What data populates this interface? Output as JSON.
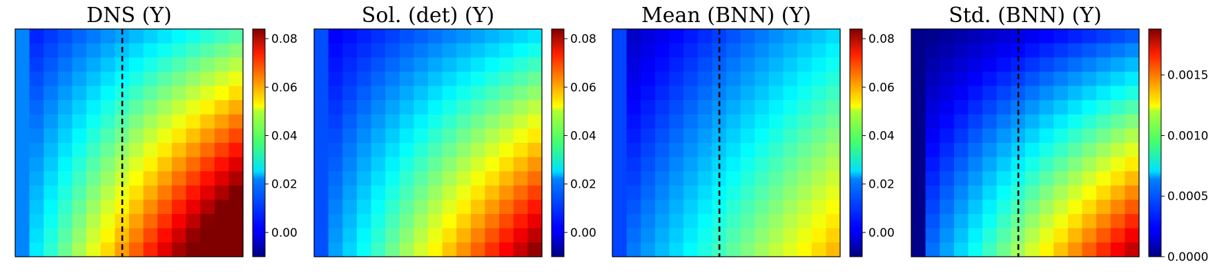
{
  "chart_data": [
    {
      "type": "heatmap",
      "title": "DNS (Y)",
      "grid_size": 16,
      "field": {
        "base": 0.018,
        "dx": 0.03,
        "dy": 0.015,
        "xy": 0.055,
        "border": 0.014
      },
      "colorbar": {
        "vmin": -0.01,
        "vmax": 0.084,
        "ticks": [
          0.0,
          0.02,
          0.04,
          0.06,
          0.08
        ],
        "tick_labels": [
          "0.00",
          "0.02",
          "0.04",
          "0.06",
          "0.08"
        ]
      },
      "dashed_line_x": 0.47
    },
    {
      "type": "heatmap",
      "title": "Sol. (det) (Y)",
      "grid_size": 16,
      "field": {
        "base": 0.012,
        "dx": 0.023,
        "dy": 0.012,
        "xy": 0.047,
        "border": 0.009
      },
      "colorbar": {
        "vmin": -0.01,
        "vmax": 0.084,
        "ticks": [
          0.0,
          0.02,
          0.04,
          0.06,
          0.08
        ],
        "tick_labels": [
          "0.00",
          "0.02",
          "0.04",
          "0.06",
          "0.08"
        ]
      },
      "dashed_line_x": null
    },
    {
      "type": "heatmap",
      "title": "Mean (BNN) (Y)",
      "grid_size": 16,
      "field": {
        "base": 0.01,
        "dx": 0.027,
        "dy": 0.015,
        "xy": 0.018,
        "border": 0.008
      },
      "colorbar": {
        "vmin": -0.01,
        "vmax": 0.084,
        "ticks": [
          0.0,
          0.02,
          0.04,
          0.06,
          0.08
        ],
        "tick_labels": [
          "0.00",
          "0.02",
          "0.04",
          "0.06",
          "0.08"
        ]
      },
      "dashed_line_x": 0.47
    },
    {
      "type": "heatmap",
      "title": "Std. (BNN) (Y)",
      "grid_size": 16,
      "field": {
        "base": 0.00035,
        "dx": 0.0004,
        "dy": 0.00035,
        "xy": 0.001,
        "border": 2e-05
      },
      "colorbar": {
        "vmin": 0.0,
        "vmax": 0.00188,
        "ticks": [
          0.0,
          0.0005,
          0.001,
          0.0015
        ],
        "tick_labels": [
          "0.0000",
          "0.0005",
          "0.0010",
          "0.0015"
        ]
      },
      "dashed_line_x": 0.47
    }
  ]
}
